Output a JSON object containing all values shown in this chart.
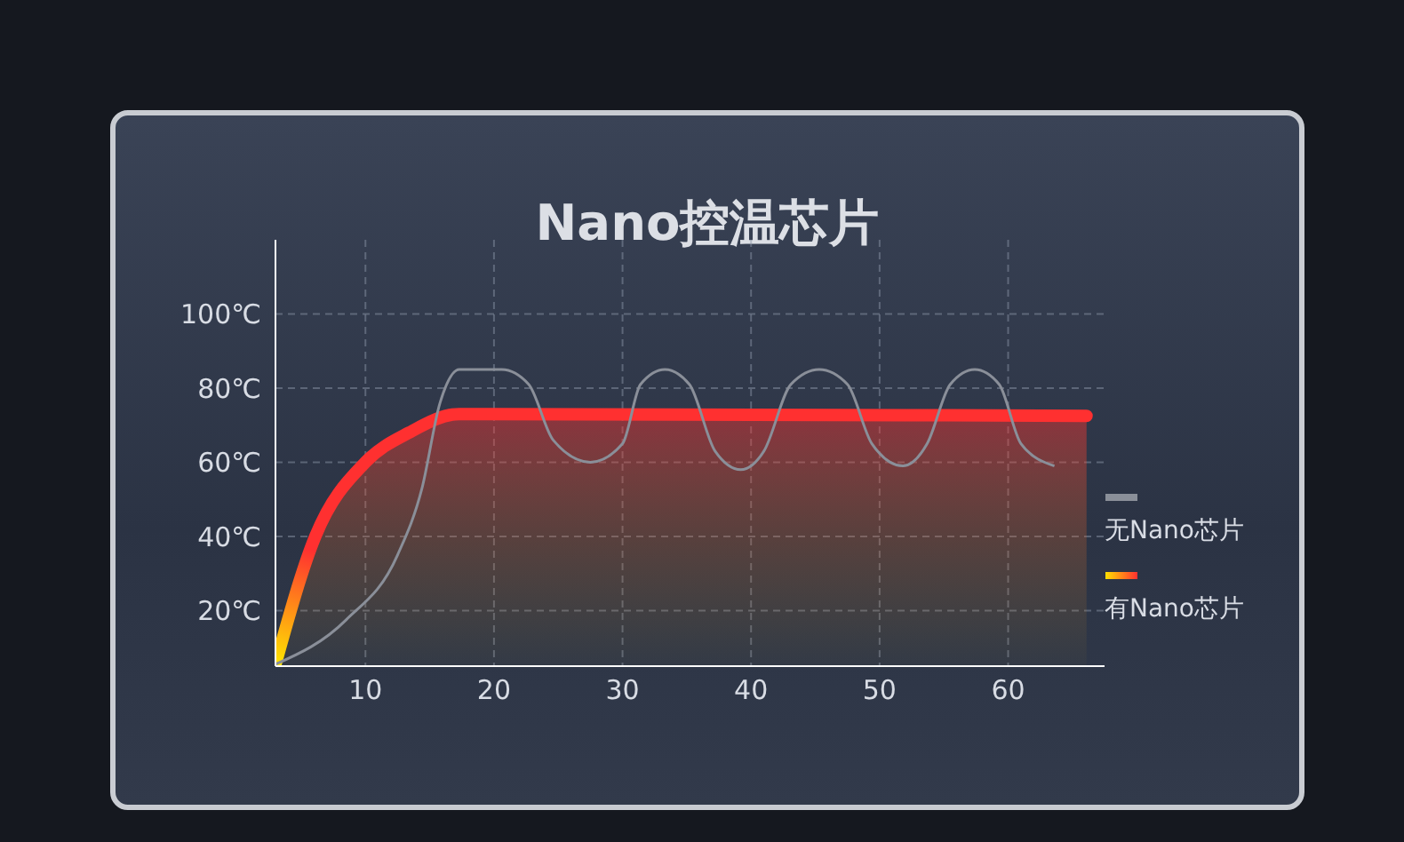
{
  "chart_data": {
    "type": "line",
    "title": "Nano控温芯片",
    "xlim": [
      3,
      67.5
    ],
    "ylim": [
      5,
      120
    ],
    "xticks": [
      10,
      20,
      30,
      40,
      50,
      60
    ],
    "yticks": [
      {
        "value": 20,
        "label": "20℃"
      },
      {
        "value": 40,
        "label": "40℃"
      },
      {
        "value": 60,
        "label": "60℃"
      },
      {
        "value": 80,
        "label": "80℃"
      },
      {
        "value": 100,
        "label": "100℃"
      }
    ],
    "grid": true,
    "legend": "right",
    "marker": "none",
    "line_style": "solid",
    "series": [
      {
        "name": "无Nano芯片",
        "color": "#8a8f99",
        "x": [
          3,
          8.5,
          12.5,
          14.4,
          15.8,
          17.3,
          20.6,
          22.7,
          24.6,
          27.5,
          30,
          31.4,
          33.3,
          35.2,
          37.2,
          39.2,
          41,
          43.1,
          45.3,
          47.5,
          49.4,
          51.8,
          53.7,
          55.5,
          57.4,
          59.3,
          61,
          63.6
        ],
        "values": [
          5.5,
          17.5,
          35,
          53,
          76,
          85,
          85,
          81,
          66,
          60,
          65,
          81,
          85,
          81,
          63,
          58,
          63,
          81,
          85,
          81,
          65,
          59,
          65,
          81,
          85,
          81,
          65,
          59
        ]
      },
      {
        "name": "有Nano芯片",
        "type": "area",
        "color": "#ff3030",
        "x": [
          3,
          6.1,
          10,
          13.4,
          17.3,
          19.8,
          66.1
        ],
        "values": [
          5.5,
          40,
          60,
          68,
          73,
          73,
          72.5
        ]
      }
    ]
  }
}
